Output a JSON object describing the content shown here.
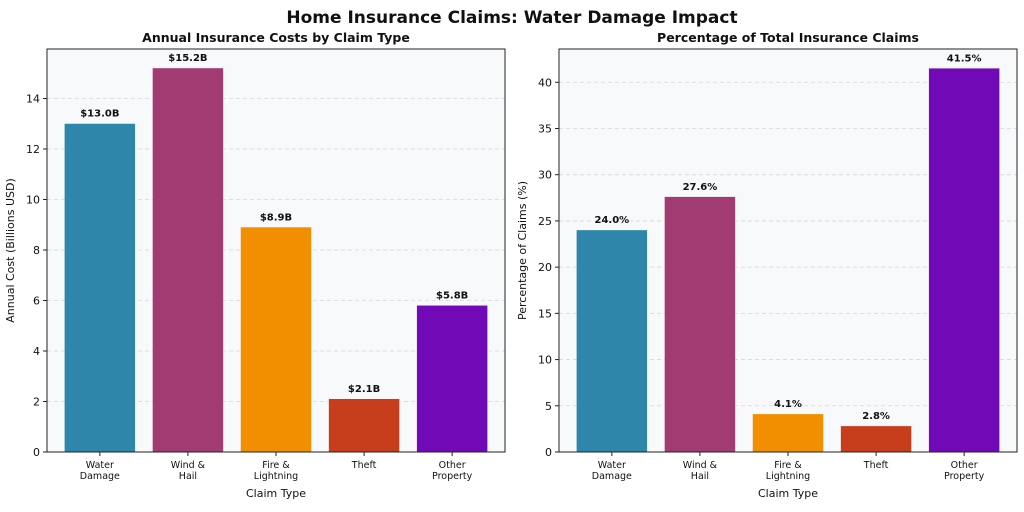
{
  "suptitle": "Home Insurance Claims: Water Damage Impact",
  "colors": [
    "#2E86AB",
    "#A23B72",
    "#F18F01",
    "#C73E1D",
    "#7209B7"
  ],
  "chart_data": [
    {
      "type": "bar",
      "title": "Annual Insurance Costs by Claim Type",
      "xlabel": "Claim Type",
      "ylabel": "Annual Cost (Billions USD)",
      "categories": [
        [
          "Water",
          "Damage"
        ],
        [
          "Wind &",
          "Hail"
        ],
        [
          "Fire &",
          "Lightning"
        ],
        [
          "Theft"
        ],
        [
          "Other",
          "Property"
        ]
      ],
      "values": [
        13.0,
        15.2,
        8.9,
        2.1,
        5.8
      ],
      "data_labels": [
        "$13.0B",
        "$15.2B",
        "$8.9B",
        "$2.1B",
        "$5.8B"
      ],
      "ylim": [
        0,
        15.96
      ],
      "yticks": [
        0,
        2,
        4,
        6,
        8,
        10,
        12,
        14
      ],
      "grid": true
    },
    {
      "type": "bar",
      "title": "Percentage of Total Insurance Claims",
      "xlabel": "Claim Type",
      "ylabel": "Percentage of Claims (%)",
      "categories": [
        [
          "Water",
          "Damage"
        ],
        [
          "Wind &",
          "Hail"
        ],
        [
          "Fire &",
          "Lightning"
        ],
        [
          "Theft"
        ],
        [
          "Other",
          "Property"
        ]
      ],
      "values": [
        24.0,
        27.6,
        4.1,
        2.8,
        41.5
      ],
      "data_labels": [
        "24.0%",
        "27.6%",
        "4.1%",
        "2.8%",
        "41.5%"
      ],
      "ylim": [
        0,
        43.6
      ],
      "yticks": [
        0,
        5,
        10,
        15,
        20,
        25,
        30,
        35,
        40
      ],
      "grid": true
    }
  ]
}
